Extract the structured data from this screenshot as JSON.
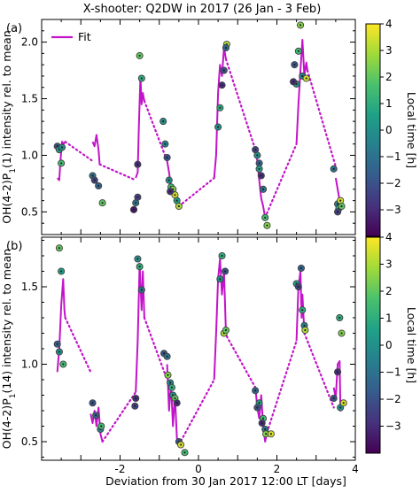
{
  "figure": {
    "title": "X-shooter: Q2DW in 2017 (26 Jan - 3 Feb)",
    "xlabel": "Deviation from 30 Jan 2017 12:00 LT [days]",
    "colorbar_label": "Local time [h]"
  },
  "colors": {
    "fit": "#c214c8",
    "colormap": [
      "#440154",
      "#46327e",
      "#365c8d",
      "#277f8e",
      "#1fa187",
      "#4ac16d",
      "#a0da39",
      "#fde725"
    ],
    "point_edge": "#404040"
  },
  "chart_data": [
    {
      "type": "scatter",
      "panel_label": "(a)",
      "ylabel": "OH(4-2)P1(1) intensity rel. to mean",
      "xlim": [
        -4,
        4
      ],
      "ylim": [
        0.3,
        2.2
      ],
      "x_ticks": [
        "-2",
        "0",
        "2",
        "4"
      ],
      "y_ticks": [
        "0.5",
        "1.0",
        "1.5",
        "2.0"
      ],
      "colorbar_ticks": [
        "4",
        "3",
        "2",
        "1",
        "0",
        "-1",
        "-2",
        "-3"
      ],
      "color_range": [
        -4,
        4
      ],
      "legend": {
        "label": "Fit",
        "position": "top-left"
      },
      "fit_solid": [
        [
          [
            -3.6,
            0.8
          ],
          [
            -3.55,
            0.78
          ],
          [
            -3.52,
            0.95
          ],
          [
            -3.48,
            1.12
          ],
          [
            -3.44,
            1.1
          ],
          [
            -3.4,
            1.12
          ]
        ],
        [
          [
            -2.7,
            1.12
          ],
          [
            -2.65,
            1.08
          ],
          [
            -2.6,
            1.18
          ],
          [
            -2.55,
            1.05
          ],
          [
            -2.52,
            0.92
          ]
        ],
        [
          [
            -1.6,
            0.8
          ],
          [
            -1.55,
            0.85
          ],
          [
            -1.52,
            1.25
          ],
          [
            -1.48,
            1.7
          ],
          [
            -1.45,
            1.45
          ],
          [
            -1.42,
            1.55
          ],
          [
            -1.38,
            1.48
          ]
        ],
        [
          [
            -0.8,
            0.95
          ],
          [
            -0.75,
            0.85
          ],
          [
            -0.7,
            0.72
          ],
          [
            -0.65,
            0.7
          ],
          [
            -0.6,
            0.65
          ],
          [
            -0.55,
            0.62
          ],
          [
            -0.5,
            0.58
          ]
        ],
        [
          [
            0.4,
            0.8
          ],
          [
            0.45,
            1.0
          ],
          [
            0.5,
            1.55
          ],
          [
            0.55,
            1.8
          ],
          [
            0.6,
            1.7
          ],
          [
            0.65,
            1.95
          ],
          [
            0.7,
            1.85
          ]
        ],
        [
          [
            1.45,
            1.05
          ],
          [
            1.5,
            0.95
          ],
          [
            1.55,
            0.78
          ],
          [
            1.6,
            0.62
          ],
          [
            1.65,
            0.55
          ],
          [
            1.7,
            0.45
          ]
        ],
        [
          [
            2.5,
            1.1
          ],
          [
            2.55,
            1.45
          ],
          [
            2.6,
            1.75
          ],
          [
            2.65,
            2.02
          ],
          [
            2.7,
            1.7
          ],
          [
            2.75,
            1.82
          ],
          [
            2.78,
            1.75
          ]
        ],
        [
          [
            3.5,
            0.8
          ],
          [
            3.55,
            0.7
          ],
          [
            3.6,
            0.6
          ],
          [
            3.65,
            0.52
          ]
        ]
      ],
      "fit_dotted": [
        [
          [
            -3.4,
            1.12
          ],
          [
            -2.7,
            0.95
          ]
        ],
        [
          [
            -2.52,
            0.92
          ],
          [
            -1.6,
            0.78
          ]
        ],
        [
          [
            -1.38,
            1.48
          ],
          [
            -0.8,
            0.95
          ]
        ],
        [
          [
            -0.5,
            0.55
          ],
          [
            0.4,
            0.8
          ]
        ],
        [
          [
            0.7,
            1.85
          ],
          [
            1.45,
            1.05
          ]
        ],
        [
          [
            1.7,
            0.45
          ],
          [
            2.5,
            1.1
          ]
        ],
        [
          [
            2.78,
            1.75
          ],
          [
            3.5,
            0.9
          ]
        ]
      ],
      "points": [
        [
          -3.6,
          1.08,
          -2.0
        ],
        [
          -3.55,
          1.05,
          0.5
        ],
        [
          -3.5,
          0.93,
          1.5
        ],
        [
          -3.48,
          1.07,
          0.0
        ],
        [
          -2.7,
          0.82,
          -1.0
        ],
        [
          -2.65,
          0.78,
          -2.5
        ],
        [
          -2.55,
          0.73,
          -1.5
        ],
        [
          -2.45,
          0.58,
          2.0
        ],
        [
          -1.5,
          1.88,
          2.0
        ],
        [
          -1.45,
          1.68,
          1.0
        ],
        [
          -1.55,
          0.92,
          -3.0
        ],
        [
          -1.6,
          0.58,
          -1.0
        ],
        [
          -1.65,
          0.52,
          -3.5
        ],
        [
          -1.55,
          0.63,
          -2.5
        ],
        [
          -0.9,
          1.3,
          0.0
        ],
        [
          -0.85,
          1.1,
          -0.5
        ],
        [
          -0.8,
          0.98,
          -2.0
        ],
        [
          -0.75,
          0.78,
          0.0
        ],
        [
          -0.7,
          0.72,
          1.5
        ],
        [
          -0.65,
          0.7,
          2.5
        ],
        [
          -0.6,
          0.65,
          3.5
        ],
        [
          -0.55,
          0.6,
          0.5
        ],
        [
          -0.5,
          0.55,
          3.0
        ],
        [
          -0.72,
          0.68,
          -3.0
        ],
        [
          0.5,
          1.25,
          0.0
        ],
        [
          0.55,
          1.42,
          1.0
        ],
        [
          0.6,
          1.62,
          -3.0
        ],
        [
          0.65,
          1.75,
          -2.0
        ],
        [
          0.72,
          1.98,
          3.0
        ],
        [
          0.7,
          1.95,
          -1.5
        ],
        [
          1.45,
          1.05,
          -2.5
        ],
        [
          1.5,
          1.0,
          0.0
        ],
        [
          1.55,
          0.93,
          -1.5
        ],
        [
          1.6,
          0.82,
          -3.0
        ],
        [
          1.65,
          0.7,
          -1.0
        ],
        [
          1.55,
          0.88,
          0.5
        ],
        [
          1.7,
          0.45,
          1.5
        ],
        [
          1.75,
          0.38,
          2.5
        ],
        [
          2.45,
          1.8,
          -2.0
        ],
        [
          2.5,
          1.63,
          0.0
        ],
        [
          2.55,
          1.92,
          1.5
        ],
        [
          2.6,
          2.15,
          2.5
        ],
        [
          2.65,
          1.7,
          -0.5
        ],
        [
          2.75,
          1.68,
          3.5
        ],
        [
          2.42,
          1.65,
          -3.0
        ],
        [
          3.45,
          0.88,
          -1.0
        ],
        [
          3.55,
          0.57,
          -0.5
        ],
        [
          3.58,
          0.53,
          1.0
        ],
        [
          3.62,
          0.6,
          3.5
        ],
        [
          3.65,
          0.55,
          2.0
        ],
        [
          3.55,
          0.5,
          -2.5
        ]
      ]
    },
    {
      "type": "scatter",
      "panel_label": "(b)",
      "ylabel": "OH(4-2)P1(14) intensity rel. to mean",
      "xlim": [
        -4,
        4
      ],
      "ylim": [
        0.38,
        1.82
      ],
      "x_ticks": [
        "-2",
        "0",
        "2",
        "4"
      ],
      "y_ticks": [
        "0.5",
        "1.0",
        "1.5"
      ],
      "colorbar_ticks": [
        "4",
        "3",
        "2",
        "1",
        "0",
        "-1",
        "-2",
        "-3"
      ],
      "color_range": [
        -4,
        4
      ],
      "fit_solid": [
        [
          [
            -3.6,
            0.95
          ],
          [
            -3.55,
            1.1
          ],
          [
            -3.5,
            1.38
          ],
          [
            -3.45,
            1.55
          ],
          [
            -3.42,
            1.35
          ],
          [
            -3.4,
            1.3
          ]
        ],
        [
          [
            -2.75,
            0.68
          ],
          [
            -2.7,
            0.62
          ],
          [
            -2.65,
            0.7
          ],
          [
            -2.6,
            0.6
          ],
          [
            -2.55,
            0.72
          ],
          [
            -2.5,
            0.55
          ],
          [
            -2.45,
            0.5
          ]
        ],
        [
          [
            -1.6,
            0.82
          ],
          [
            -1.55,
            1.15
          ],
          [
            -1.5,
            1.65
          ],
          [
            -1.45,
            1.35
          ],
          [
            -1.42,
            1.6
          ],
          [
            -1.38,
            1.3
          ]
        ],
        [
          [
            -0.8,
            1.0
          ],
          [
            -0.75,
            0.7
          ],
          [
            -0.7,
            0.88
          ],
          [
            -0.65,
            0.6
          ],
          [
            -0.6,
            0.8
          ],
          [
            -0.55,
            0.52
          ],
          [
            -0.5,
            0.5
          ]
        ],
        [
          [
            0.4,
            0.9
          ],
          [
            0.45,
            1.2
          ],
          [
            0.5,
            1.55
          ],
          [
            0.55,
            1.68
          ],
          [
            0.6,
            1.45
          ],
          [
            0.65,
            1.6
          ],
          [
            0.7,
            1.2
          ],
          [
            0.72,
            1.18
          ]
        ],
        [
          [
            1.45,
            0.85
          ],
          [
            1.5,
            0.72
          ],
          [
            1.55,
            0.65
          ],
          [
            1.6,
            0.8
          ],
          [
            1.65,
            0.6
          ],
          [
            1.7,
            0.5
          ],
          [
            1.75,
            0.56
          ]
        ],
        [
          [
            2.5,
            1.15
          ],
          [
            2.55,
            1.5
          ],
          [
            2.6,
            1.6
          ],
          [
            2.63,
            1.3
          ],
          [
            2.65,
            1.45
          ],
          [
            2.7,
            1.2
          ]
        ],
        [
          [
            3.45,
            0.85
          ],
          [
            3.5,
            0.78
          ],
          [
            3.55,
            1.0
          ],
          [
            3.6,
            1.02
          ],
          [
            3.62,
            0.7
          ],
          [
            3.65,
            0.72
          ],
          [
            3.7,
            0.75
          ]
        ]
      ],
      "fit_dotted": [
        [
          [
            -3.4,
            1.3
          ],
          [
            -2.75,
            0.95
          ]
        ],
        [
          [
            -2.45,
            0.5
          ],
          [
            -1.6,
            0.82
          ]
        ],
        [
          [
            -1.38,
            1.3
          ],
          [
            -0.8,
            0.9
          ]
        ],
        [
          [
            -0.5,
            0.48
          ],
          [
            0.4,
            0.9
          ]
        ],
        [
          [
            0.72,
            1.18
          ],
          [
            1.45,
            0.85
          ]
        ],
        [
          [
            1.75,
            0.56
          ],
          [
            2.5,
            1.15
          ]
        ],
        [
          [
            2.7,
            1.2
          ],
          [
            3.45,
            0.72
          ]
        ]
      ],
      "points": [
        [
          -3.55,
          1.75,
          2.0
        ],
        [
          -3.5,
          1.6,
          0.5
        ],
        [
          -3.6,
          1.13,
          -1.5
        ],
        [
          -3.55,
          1.08,
          0.0
        ],
        [
          -3.45,
          1.0,
          1.5
        ],
        [
          -2.7,
          0.75,
          -2.0
        ],
        [
          -2.62,
          0.67,
          -1.5
        ],
        [
          -2.5,
          0.58,
          -0.5
        ],
        [
          -2.48,
          0.6,
          1.5
        ],
        [
          -1.55,
          1.68,
          0.0
        ],
        [
          -1.45,
          1.48,
          -1.0
        ],
        [
          -1.5,
          1.63,
          1.0
        ],
        [
          -1.6,
          0.78,
          -3.0
        ],
        [
          -1.62,
          0.73,
          -2.5
        ],
        [
          -0.88,
          1.07,
          -2.0
        ],
        [
          -0.8,
          1.05,
          -1.0
        ],
        [
          -0.78,
          0.93,
          2.5
        ],
        [
          -0.72,
          0.88,
          -0.5
        ],
        [
          -0.68,
          0.85,
          1.0
        ],
        [
          -0.65,
          0.8,
          0.0
        ],
        [
          -0.6,
          0.78,
          2.0
        ],
        [
          -0.55,
          0.75,
          -3.0
        ],
        [
          -0.5,
          0.5,
          -2.0
        ],
        [
          -0.45,
          0.48,
          3.5
        ],
        [
          -0.35,
          0.43,
          1.5
        ],
        [
          0.55,
          1.55,
          0.0
        ],
        [
          0.6,
          1.7,
          1.0
        ],
        [
          0.68,
          1.6,
          -2.0
        ],
        [
          0.65,
          1.2,
          3.0
        ],
        [
          0.7,
          1.22,
          2.0
        ],
        [
          1.45,
          0.83,
          -1.5
        ],
        [
          1.55,
          0.75,
          0.5
        ],
        [
          1.5,
          0.72,
          -2.0
        ],
        [
          1.65,
          0.65,
          1.5
        ],
        [
          1.62,
          0.62,
          -3.0
        ],
        [
          1.7,
          0.58,
          -1.0
        ],
        [
          1.72,
          0.55,
          2.5
        ],
        [
          1.85,
          0.55,
          3.5
        ],
        [
          2.5,
          1.52,
          0.5
        ],
        [
          2.55,
          1.5,
          -2.5
        ],
        [
          2.62,
          1.62,
          -1.5
        ],
        [
          2.65,
          1.35,
          1.0
        ],
        [
          2.7,
          1.25,
          -0.5
        ],
        [
          2.72,
          1.22,
          3.0
        ],
        [
          3.45,
          0.78,
          -2.0
        ],
        [
          3.55,
          0.95,
          -3.0
        ],
        [
          3.6,
          1.3,
          1.0
        ],
        [
          3.65,
          1.2,
          2.5
        ],
        [
          3.62,
          0.72,
          0.0
        ],
        [
          3.7,
          0.75,
          3.5
        ]
      ]
    }
  ]
}
